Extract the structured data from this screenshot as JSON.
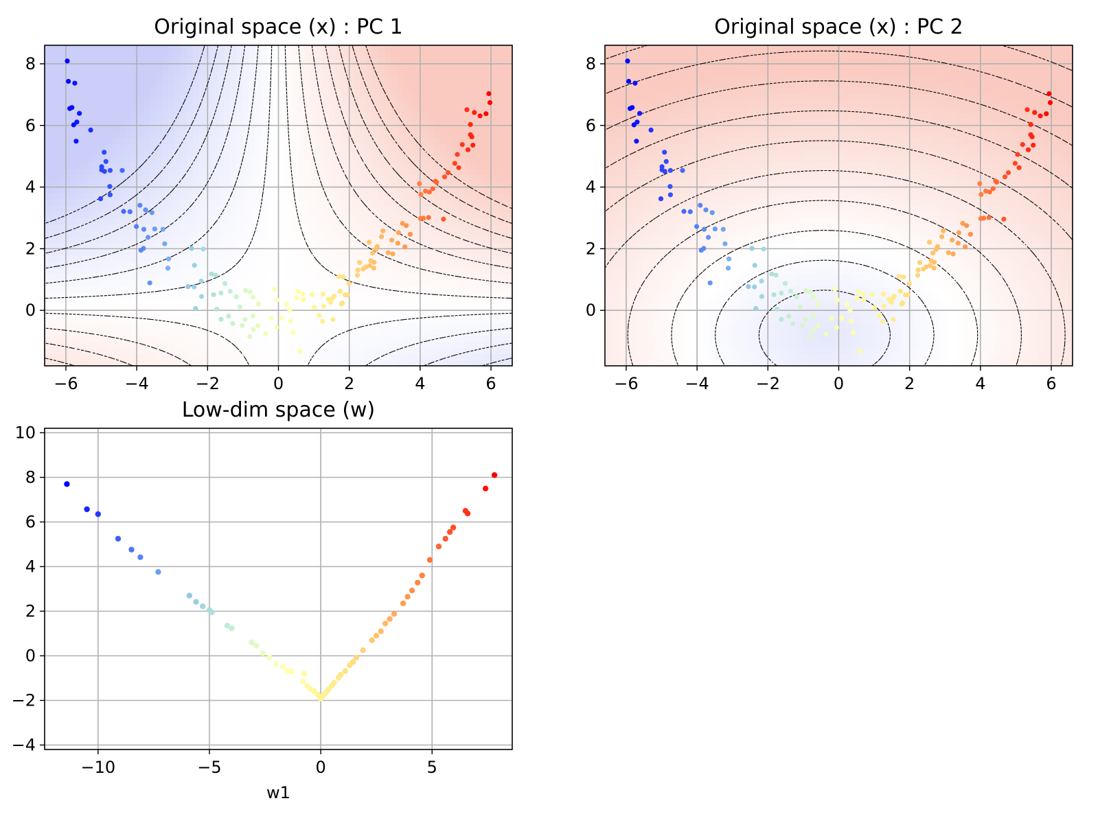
{
  "figure": {
    "panels_note": "three subplots in a 2x2 grid",
    "colors": {
      "cmap": "rainbow",
      "grid": "#b0b0b0",
      "contour": "#000000",
      "positive_fill": "#f06c50",
      "negative_fill": "#6b78ee"
    }
  },
  "chart_data": [
    {
      "type": "scatter",
      "title": "Original space (x) : PC 1",
      "xlabel": "",
      "ylabel": "",
      "xlim": [
        -6.6,
        6.6
      ],
      "ylim": [
        -1.8,
        8.6
      ],
      "xticks": [
        -6,
        -4,
        -2,
        0,
        2,
        4,
        6
      ],
      "xtick_labels": [
        "−6",
        "−4",
        "−2",
        "0",
        "2",
        "4",
        "6"
      ],
      "yticks": [
        0,
        2,
        4,
        6,
        8
      ],
      "ytick_labels": [
        "0",
        "2",
        "4",
        "6",
        "8"
      ],
      "grid": true,
      "background": "filled contour of PC 1 (saddle shaped, positive top-right, negative top-left) with dashed black contour lines",
      "contour_levels": [
        -2.2,
        -1.8,
        -1.4,
        -1.0,
        -0.6,
        -0.2,
        0.2,
        0.6,
        1.0,
        1.4,
        1.8,
        2.2,
        2.6
      ]
    },
    {
      "type": "scatter",
      "title": "Original space (x) : PC 2",
      "xlabel": "",
      "ylabel": "",
      "xlim": [
        -6.6,
        6.6
      ],
      "ylim": [
        -1.8,
        8.6
      ],
      "xticks": [
        -6,
        -4,
        -2,
        0,
        2,
        4,
        6
      ],
      "xtick_labels": [
        "−6",
        "−4",
        "−2",
        "0",
        "2",
        "4",
        "6"
      ],
      "yticks": [
        0,
        2,
        4,
        6,
        8
      ],
      "ytick_labels": [
        "0",
        "2",
        "4",
        "6",
        "8"
      ],
      "grid": true,
      "background": "filled contour of PC 2 (bowl shaped, minimum near (-0.4, -0.8)) with dashed black elliptical contour lines",
      "contour_levels": [
        0.6,
        1.0,
        1.4,
        1.8,
        2.2,
        2.6,
        3.0,
        3.4,
        3.8,
        4.2,
        4.6,
        5.0
      ]
    },
    {
      "type": "scatter",
      "title": "Low-dim space (w)",
      "xlabel": "w1",
      "ylabel": "",
      "xlim": [
        -12.4,
        8.6
      ],
      "ylim": [
        -4.2,
        10.2
      ],
      "xticks": [
        -10,
        -5,
        0,
        5
      ],
      "xtick_labels": [
        "−10",
        "−5",
        "0",
        "5"
      ],
      "yticks": [
        -4,
        -2,
        0,
        2,
        4,
        6,
        8,
        10
      ],
      "ytick_labels": [
        "−4",
        "−2",
        "0",
        "2",
        "4",
        "6",
        "8",
        "10"
      ],
      "grid": true
    }
  ],
  "scatter_points_x": [
    [
      -5.96,
      8.09
    ],
    [
      -5.93,
      7.43
    ],
    [
      -5.75,
      7.37
    ],
    [
      -5.83,
      6.58
    ],
    [
      -5.89,
      6.55
    ],
    [
      -5.62,
      6.39
    ],
    [
      -5.69,
      6.11
    ],
    [
      -5.78,
      6.02
    ],
    [
      -5.71,
      5.49
    ],
    [
      -5.3,
      5.85
    ],
    [
      -4.92,
      5.13
    ],
    [
      -4.99,
      4.66
    ],
    [
      -4.87,
      4.83
    ],
    [
      -4.91,
      4.51
    ],
    [
      -4.75,
      4.54
    ],
    [
      -4.99,
      4.56
    ],
    [
      -4.41,
      4.54
    ],
    [
      -4.76,
      4.02
    ],
    [
      -5.02,
      3.62
    ],
    [
      -4.75,
      3.75
    ],
    [
      -4.37,
      3.21
    ],
    [
      -4.19,
      3.2
    ],
    [
      -3.91,
      3.41
    ],
    [
      -3.75,
      3.26
    ],
    [
      -3.57,
      3.17
    ],
    [
      -4.01,
      2.72
    ],
    [
      -3.8,
      2.63
    ],
    [
      -3.68,
      2.37
    ],
    [
      -3.81,
      2.01
    ],
    [
      -3.88,
      1.95
    ],
    [
      -3.49,
      2.64
    ],
    [
      -3.26,
      2.63
    ],
    [
      -3.21,
      2.16
    ],
    [
      -3.1,
      1.67
    ],
    [
      -3.12,
      1.37
    ],
    [
      -3.63,
      0.89
    ],
    [
      -2.45,
      2.01
    ],
    [
      -2.12,
      1.99
    ],
    [
      -2.37,
      1.46
    ],
    [
      -2.55,
      0.77
    ],
    [
      -2.38,
      0.76
    ],
    [
      -2.18,
      0.95
    ],
    [
      -2.17,
      0.45
    ],
    [
      -2.34,
      0.06
    ],
    [
      -1.89,
      1.18
    ],
    [
      -1.77,
      1.14
    ],
    [
      -1.51,
      0.87
    ],
    [
      -1.62,
      0.56
    ],
    [
      -1.83,
      0.51
    ],
    [
      -1.74,
      0.04
    ],
    [
      -1.36,
      0.62
    ],
    [
      -1.19,
      0.44
    ],
    [
      -1.09,
      0.11
    ],
    [
      -0.93,
      0.64
    ],
    [
      -0.8,
      0.6
    ],
    [
      -0.72,
      0.43
    ],
    [
      -0.57,
      0.2
    ],
    [
      -0.56,
      0.22
    ],
    [
      -0.72,
      -0.18
    ],
    [
      -0.94,
      -0.3
    ],
    [
      -1.02,
      -0.49
    ],
    [
      -1.29,
      -0.43
    ],
    [
      -1.41,
      -0.19
    ],
    [
      -1.62,
      -0.29
    ],
    [
      -0.81,
      -0.85
    ],
    [
      -0.71,
      -0.62
    ],
    [
      -0.58,
      -0.5
    ],
    [
      -0.36,
      -0.76
    ],
    [
      -0.06,
      -0.56
    ],
    [
      -0.2,
      -0.26
    ],
    [
      -0.04,
      0.34
    ],
    [
      0.08,
      -0.26
    ],
    [
      -0.11,
      0.68
    ],
    [
      0.23,
      0.2
    ],
    [
      0.32,
      0.0
    ],
    [
      0.35,
      -0.35
    ],
    [
      0.41,
      -0.72
    ],
    [
      0.51,
      0.41
    ],
    [
      0.56,
      0.61
    ],
    [
      0.69,
      0.53
    ],
    [
      0.7,
      0.34
    ],
    [
      0.6,
      -1.33
    ],
    [
      0.95,
      0.51
    ],
    [
      1.01,
      0.1
    ],
    [
      1.15,
      -0.16
    ],
    [
      1.26,
      0.53
    ],
    [
      1.25,
      -0.36
    ],
    [
      1.28,
      0.13
    ],
    [
      1.41,
      0.36
    ],
    [
      1.53,
      0.4
    ],
    [
      1.57,
      0.46
    ],
    [
      1.48,
      0.26
    ],
    [
      1.54,
      -0.3
    ],
    [
      1.8,
      0.24
    ],
    [
      1.78,
      0.2
    ],
    [
      1.95,
      0.5
    ],
    [
      1.74,
      0.62
    ],
    [
      1.71,
      1.1
    ],
    [
      1.83,
      1.08
    ],
    [
      1.99,
      0.87
    ],
    [
      1.88,
      0.5
    ],
    [
      2.23,
      1.14
    ],
    [
      2.24,
      1.31
    ],
    [
      2.29,
      1.55
    ],
    [
      2.39,
      1.34
    ],
    [
      2.47,
      1.41
    ],
    [
      2.58,
      1.45
    ],
    [
      2.69,
      1.37
    ],
    [
      2.61,
      1.61
    ],
    [
      2.7,
      1.56
    ],
    [
      2.66,
      1.86
    ],
    [
      2.75,
      1.98
    ],
    [
      2.56,
      2.21
    ],
    [
      2.91,
      2.39
    ],
    [
      2.95,
      2.58
    ],
    [
      2.79,
      2.07
    ],
    [
      3.1,
      1.87
    ],
    [
      3.2,
      2.28
    ],
    [
      3.23,
      1.83
    ],
    [
      3.37,
      2.18
    ],
    [
      3.39,
      2.52
    ],
    [
      3.5,
      2.82
    ],
    [
      3.61,
      2.75
    ],
    [
      3.72,
      2.47
    ],
    [
      3.57,
      2.06
    ],
    [
      4.01,
      2.98
    ],
    [
      4.09,
      2.99
    ],
    [
      4.24,
      3.01
    ],
    [
      4.66,
      2.96
    ],
    [
      4.02,
      3.76
    ],
    [
      4.15,
      3.87
    ],
    [
      4.26,
      3.84
    ],
    [
      4.36,
      3.95
    ],
    [
      3.98,
      4.11
    ],
    [
      4.43,
      4.19
    ],
    [
      4.46,
      4.16
    ],
    [
      4.69,
      4.33
    ],
    [
      4.79,
      4.47
    ],
    [
      4.98,
      4.77
    ],
    [
      5.09,
      4.63
    ],
    [
      5.05,
      5.06
    ],
    [
      5.19,
      5.38
    ],
    [
      5.35,
      5.21
    ],
    [
      5.49,
      5.36
    ],
    [
      5.42,
      5.7
    ],
    [
      5.46,
      5.63
    ],
    [
      5.42,
      6.03
    ],
    [
      5.32,
      6.51
    ],
    [
      5.69,
      6.31
    ],
    [
      5.86,
      6.38
    ],
    [
      5.97,
      6.74
    ],
    [
      5.94,
      7.03
    ],
    [
      5.53,
      6.42
    ]
  ],
  "scatter_points_w": [
    [
      -11.4,
      7.7
    ],
    [
      -10.5,
      6.57
    ],
    [
      -10.0,
      6.35
    ],
    [
      -9.1,
      5.25
    ],
    [
      -8.5,
      4.76
    ],
    [
      -8.1,
      4.42
    ],
    [
      -7.3,
      3.76
    ],
    [
      -5.9,
      2.7
    ],
    [
      -5.6,
      2.42
    ],
    [
      -5.3,
      2.22
    ],
    [
      -5.0,
      2.05
    ],
    [
      -4.9,
      1.95
    ],
    [
      -4.2,
      1.35
    ],
    [
      -4.0,
      1.23
    ],
    [
      -3.1,
      0.6
    ],
    [
      -2.9,
      0.45
    ],
    [
      -2.6,
      0.12
    ],
    [
      -2.3,
      -0.07
    ],
    [
      -2.0,
      -0.38
    ],
    [
      -1.7,
      -0.48
    ],
    [
      -1.5,
      -0.68
    ],
    [
      -1.3,
      -0.7
    ],
    [
      -0.75,
      -0.8
    ],
    [
      -0.8,
      -1.15
    ],
    [
      -0.6,
      -1.35
    ],
    [
      -0.45,
      -1.5
    ],
    [
      -0.3,
      -1.58
    ],
    [
      -0.15,
      -1.72
    ],
    [
      -0.05,
      -1.82
    ],
    [
      0.0,
      -1.92
    ],
    [
      0.05,
      -1.85
    ],
    [
      0.15,
      -1.75
    ],
    [
      0.25,
      -1.63
    ],
    [
      0.35,
      -1.5
    ],
    [
      0.5,
      -1.35
    ],
    [
      0.6,
      -1.2
    ],
    [
      0.8,
      -0.98
    ],
    [
      0.9,
      -0.85
    ],
    [
      1.1,
      -0.68
    ],
    [
      1.3,
      -0.42
    ],
    [
      1.45,
      -0.28
    ],
    [
      1.6,
      -0.08
    ],
    [
      1.9,
      0.25
    ],
    [
      2.3,
      0.7
    ],
    [
      2.5,
      0.9
    ],
    [
      2.7,
      1.1
    ],
    [
      2.9,
      1.45
    ],
    [
      3.1,
      1.65
    ],
    [
      3.3,
      1.88
    ],
    [
      3.7,
      2.35
    ],
    [
      3.9,
      2.65
    ],
    [
      4.1,
      2.93
    ],
    [
      4.35,
      3.28
    ],
    [
      4.55,
      3.6
    ],
    [
      4.9,
      4.3
    ],
    [
      5.3,
      4.9
    ],
    [
      5.6,
      5.25
    ],
    [
      5.8,
      5.55
    ],
    [
      5.95,
      5.75
    ],
    [
      6.5,
      6.5
    ],
    [
      6.6,
      6.38
    ],
    [
      7.4,
      7.5
    ],
    [
      7.8,
      8.1
    ]
  ]
}
